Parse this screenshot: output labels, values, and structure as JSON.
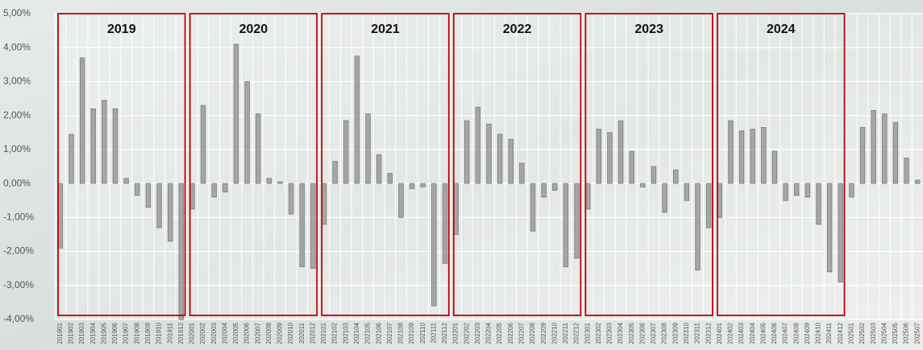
{
  "chart_data": {
    "type": "bar",
    "categories": [
      "201901",
      "201902",
      "201903",
      "201904",
      "201905",
      "201906",
      "201907",
      "201908",
      "201909",
      "201910",
      "201911",
      "201912",
      "202001",
      "202002",
      "202003",
      "202004",
      "202005",
      "202006",
      "202007",
      "202008",
      "202009",
      "202010",
      "202011",
      "202012",
      "202101",
      "202102",
      "202103",
      "202104",
      "202105",
      "202106",
      "202107",
      "202108",
      "202109",
      "202110",
      "202111",
      "202112",
      "202201",
      "202202",
      "202203",
      "202204",
      "202205",
      "202206",
      "202207",
      "202208",
      "202209",
      "202210",
      "202211",
      "202212",
      "202301",
      "202302",
      "202303",
      "202304",
      "202305",
      "202306",
      "202307",
      "202308",
      "202309",
      "202310",
      "202311",
      "202312",
      "202401",
      "202402",
      "202403",
      "202404",
      "202405",
      "202406",
      "202407",
      "202408",
      "202409",
      "202410",
      "202411",
      "202412",
      "202501",
      "202502",
      "202503",
      "202504",
      "202505",
      "202506",
      "202507"
    ],
    "values": [
      -1.9,
      1.45,
      3.7,
      2.2,
      2.45,
      2.2,
      0.15,
      -0.35,
      -0.7,
      -1.3,
      -1.7,
      -4.0,
      -0.75,
      2.3,
      -0.4,
      -0.25,
      4.1,
      3.0,
      2.05,
      0.15,
      0.05,
      -0.9,
      -2.45,
      -2.5,
      -1.2,
      0.65,
      1.85,
      3.75,
      2.05,
      0.85,
      0.3,
      -1.0,
      -0.15,
      -0.1,
      -3.6,
      -2.35,
      -1.5,
      1.85,
      2.25,
      1.75,
      1.45,
      1.3,
      0.6,
      -1.4,
      -0.4,
      -0.2,
      -2.45,
      -2.2,
      -0.75,
      1.6,
      1.5,
      1.85,
      0.95,
      -0.1,
      0.5,
      -0.85,
      0.4,
      -0.5,
      -2.55,
      -1.3,
      -1.0,
      1.85,
      1.55,
      1.6,
      1.65,
      0.95,
      -0.5,
      -0.35,
      -0.4,
      -1.2,
      -2.6,
      -2.9,
      -0.4,
      1.65,
      2.15,
      2.05,
      1.8,
      0.75,
      0.1
    ],
    "color": "#a6a6a6",
    "ylim": [
      -4,
      5
    ],
    "yticks": [
      {
        "value": -4,
        "label": "-4,00%"
      },
      {
        "value": -3,
        "label": "-3,00%"
      },
      {
        "value": -2,
        "label": "-2,00%"
      },
      {
        "value": -1,
        "label": "-1,00%"
      },
      {
        "value": 0,
        "label": "0,00%"
      },
      {
        "value": 1,
        "label": "1,00%"
      },
      {
        "value": 2,
        "label": "2,00%"
      },
      {
        "value": 3,
        "label": "3,00%"
      },
      {
        "value": 4,
        "label": "4,00%"
      },
      {
        "value": 5,
        "label": "5,00%"
      }
    ],
    "grid": true,
    "year_boxes": [
      "2019",
      "2020",
      "2021",
      "2022",
      "2023",
      "2024"
    ],
    "box_color": "#c00000"
  }
}
